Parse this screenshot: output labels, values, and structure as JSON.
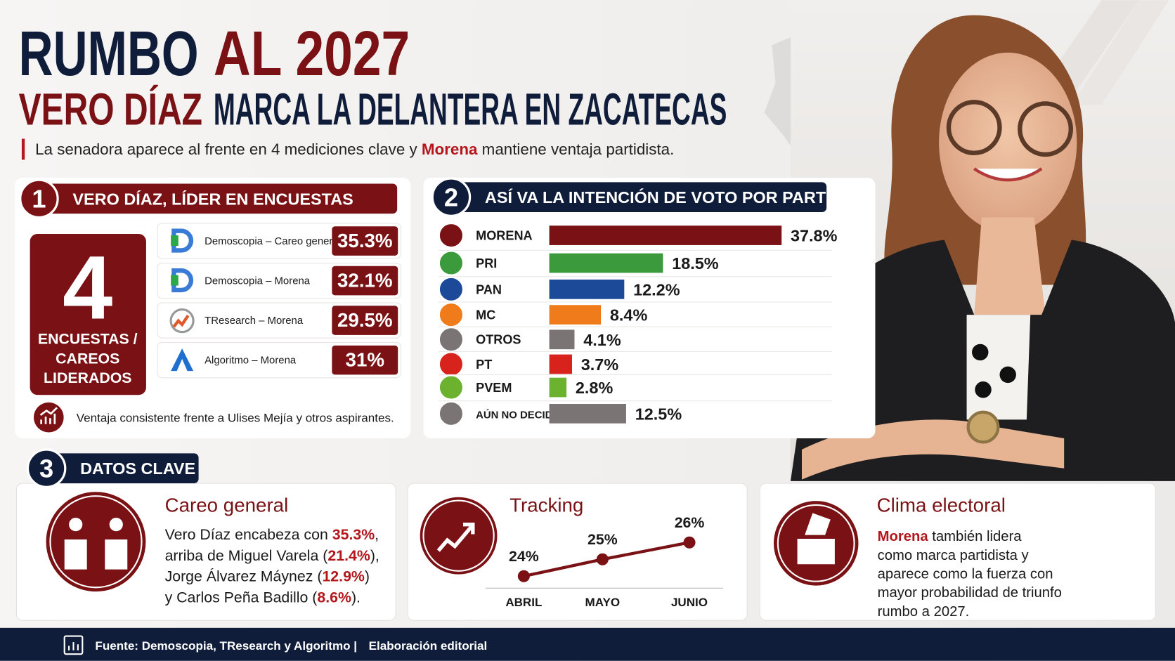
{
  "header": {
    "title": [
      "RUMBO",
      "AL 2027"
    ],
    "headline": [
      "VERO DÍAZ",
      "MARCA LA DELANTERA EN ZACATECAS"
    ],
    "subtitle": [
      "La senadora aparece al frente en 4 mediciones clave y ",
      "Morena",
      " mantiene ventaja partidista."
    ]
  },
  "section1": {
    "number": "1",
    "title": "VERO DÍAZ, LÍDER EN ENCUESTAS",
    "count": "4",
    "count_label": [
      "ENCUESTAS /",
      "CAREOS",
      "LIDERADOS"
    ],
    "polls": [
      {
        "name": "Demoscopia – Careo general",
        "value": "35.3%"
      },
      {
        "name": "Demoscopia – Morena",
        "value": "32.1%"
      },
      {
        "name": "TResearch – Morena",
        "value": "29.5%"
      },
      {
        "name": "Algoritmo – Morena",
        "value": "31%"
      }
    ],
    "note": "Ventaja consistente frente a Ulises Mejía y otros aspirantes."
  },
  "section2": {
    "number": "2",
    "title": "ASÍ VA LA INTENCIÓN DE VOTO POR PARTIDO"
  },
  "chart_data": [
    {
      "type": "bar",
      "orientation": "horizontal",
      "categories": [
        "MORENA",
        "PRI",
        "PAN",
        "MC",
        "OTROS",
        "PT",
        "PVEM",
        "AÚN NO DECIDE"
      ],
      "values": [
        37.8,
        18.5,
        12.2,
        8.4,
        4.1,
        3.7,
        2.8,
        12.5
      ],
      "value_labels": [
        "37.8%",
        "18.5%",
        "12.2%",
        "8.4%",
        "4.1%",
        "3.7%",
        "2.8%",
        "12.5%"
      ],
      "colors": [
        "#7a1114",
        "#3b9a3b",
        "#1d4a98",
        "#f07b1b",
        "#7a7574",
        "#d8221c",
        "#6db22f",
        "#7a7574"
      ]
    },
    {
      "type": "line",
      "title": "Tracking",
      "categories": [
        "ABRIL",
        "MAYO",
        "JUNIO"
      ],
      "values": [
        24,
        25,
        26
      ],
      "value_labels": [
        "24%",
        "25%",
        "26%"
      ],
      "color": "#7a1114"
    }
  ],
  "section3": {
    "number": "3",
    "title": "DATOS CLAVE",
    "cards": [
      {
        "title": "Careo general",
        "lines": [
          [
            "Vero Díaz encabeza con ",
            "35.3%",
            ","
          ],
          [
            "arriba de Miguel Varela (",
            "21.4%",
            "),"
          ],
          [
            "Jorge Álvarez Máynez (",
            "12.9%",
            ")"
          ],
          [
            "y Carlos Peña Badillo (",
            "8.6%",
            ")."
          ]
        ]
      },
      {
        "title": "Clima electoral",
        "lines": [
          [
            "",
            "Morena",
            " también lidera"
          ],
          [
            "como marca partidista y"
          ],
          [
            "aparece como la fuerza con"
          ],
          [
            "mayor probabilidad de triunfo"
          ],
          [
            "rumbo a 2027."
          ]
        ]
      }
    ]
  },
  "footer": {
    "source": "Fuente: Demoscopia, TResearch y Algoritmo",
    "separator": "|",
    "credit": "Elaboración editorial"
  }
}
